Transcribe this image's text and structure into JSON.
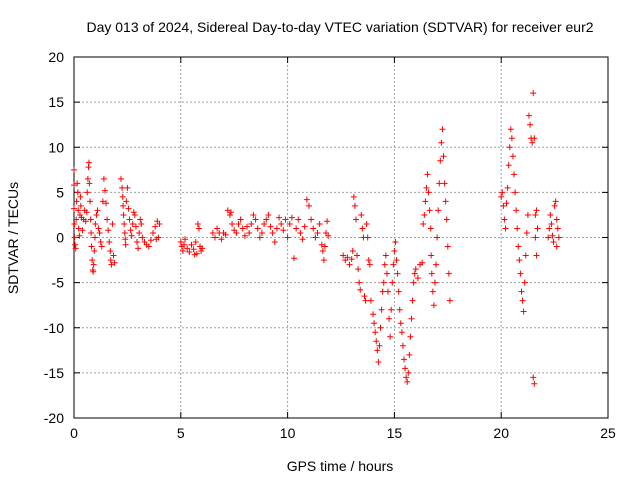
{
  "chart_data": {
    "type": "scatter",
    "title": "Day 013 of 2024, Sidereal Day-to-day VTEC variation (SDTVAR) for receiver eur2",
    "xlabel": "GPS time / hours",
    "ylabel": "SDTVAR / TECUs",
    "xlim": [
      0,
      25
    ],
    "ylim": [
      -20,
      20
    ],
    "xticks": [
      0,
      5,
      10,
      15,
      20,
      25
    ],
    "yticks": [
      -20,
      -15,
      -10,
      -5,
      0,
      5,
      10,
      15,
      20
    ],
    "xtick_labels": [
      "0",
      "5",
      "10",
      "15",
      "20",
      "25"
    ],
    "ytick_labels": [
      "-20",
      "-15",
      "-10",
      "-5",
      "0",
      "5",
      "10",
      "15",
      "20"
    ],
    "grid": true,
    "marker": "+",
    "color": "#ff0000",
    "series": [
      {
        "name": "eur2",
        "points": [
          [
            0.0,
            7.5
          ],
          [
            0.0,
            5.8
          ],
          [
            0.0,
            3.2
          ],
          [
            0.02,
            1.5
          ],
          [
            0.03,
            0.0
          ],
          [
            0.05,
            -0.8
          ],
          [
            0.08,
            -1.2
          ],
          [
            0.1,
            2.0
          ],
          [
            0.12,
            4.0
          ],
          [
            0.15,
            6.0
          ],
          [
            0.18,
            5.0
          ],
          [
            0.2,
            3.0
          ],
          [
            0.22,
            1.0
          ],
          [
            0.25,
            0.2
          ],
          [
            0.28,
            2.5
          ],
          [
            0.3,
            4.5
          ],
          [
            0.32,
            3.5
          ],
          [
            0.35,
            2.2
          ],
          [
            0.4,
            0.8
          ],
          [
            0.45,
            2.0
          ],
          [
            0.5,
            3.0
          ],
          [
            0.55,
            1.8
          ],
          [
            0.6,
            2.8
          ],
          [
            0.62,
            5.0
          ],
          [
            0.65,
            6.5
          ],
          [
            0.68,
            7.8
          ],
          [
            0.7,
            8.3
          ],
          [
            0.72,
            6.0
          ],
          [
            0.75,
            4.0
          ],
          [
            0.78,
            2.0
          ],
          [
            0.8,
            0.5
          ],
          [
            0.82,
            -1.0
          ],
          [
            0.85,
            -2.5
          ],
          [
            0.88,
            -3.6
          ],
          [
            0.9,
            -3.8
          ],
          [
            0.92,
            -3.0
          ],
          [
            0.95,
            -1.5
          ],
          [
            0.98,
            0.0
          ],
          [
            1.0,
            1.5
          ],
          [
            1.05,
            2.5
          ],
          [
            1.1,
            3.0
          ],
          [
            1.15,
            1.0
          ],
          [
            1.2,
            0.5
          ],
          [
            1.25,
            -0.5
          ],
          [
            1.3,
            -1.0
          ],
          [
            1.35,
            4.0
          ],
          [
            1.4,
            6.5
          ],
          [
            1.45,
            5.2
          ],
          [
            1.5,
            3.8
          ],
          [
            1.55,
            2.0
          ],
          [
            1.6,
            0.8
          ],
          [
            1.65,
            -0.5
          ],
          [
            1.7,
            -1.5
          ],
          [
            1.72,
            -2.5
          ],
          [
            1.75,
            -3.0
          ],
          [
            1.8,
            1.5
          ],
          [
            1.85,
            -2.0
          ],
          [
            1.9,
            -2.8
          ],
          [
            2.2,
            6.5
          ],
          [
            2.25,
            5.5
          ],
          [
            2.28,
            4.5
          ],
          [
            2.3,
            3.5
          ],
          [
            2.32,
            2.5
          ],
          [
            2.35,
            1.5
          ],
          [
            2.38,
            0.5
          ],
          [
            2.4,
            -0.2
          ],
          [
            2.42,
            -0.8
          ],
          [
            2.45,
            4.0
          ],
          [
            2.5,
            5.5
          ],
          [
            2.55,
            3.2
          ],
          [
            2.6,
            2.0
          ],
          [
            2.65,
            0.8
          ],
          [
            2.7,
            0.2
          ],
          [
            2.75,
            1.5
          ],
          [
            2.8,
            2.8
          ],
          [
            2.85,
            2.5
          ],
          [
            2.9,
            1.2
          ],
          [
            2.95,
            -0.5
          ],
          [
            3.0,
            -1.2
          ],
          [
            3.05,
            0.5
          ],
          [
            3.1,
            2.0
          ],
          [
            3.15,
            1.5
          ],
          [
            3.2,
            0.0
          ],
          [
            3.3,
            -0.5
          ],
          [
            3.4,
            -0.8
          ],
          [
            3.5,
            -1.0
          ],
          [
            3.6,
            -0.3
          ],
          [
            3.7,
            0.5
          ],
          [
            3.8,
            1.2
          ],
          [
            3.9,
            1.8
          ],
          [
            4.0,
            1.5
          ],
          [
            3.85,
            -0.2
          ],
          [
            3.95,
            0.0
          ],
          [
            5.0,
            -0.5
          ],
          [
            5.05,
            -1.0
          ],
          [
            5.1,
            -1.5
          ],
          [
            5.15,
            -0.8
          ],
          [
            5.2,
            -0.2
          ],
          [
            5.3,
            -1.2
          ],
          [
            5.4,
            -1.6
          ],
          [
            5.5,
            -0.8
          ],
          [
            5.6,
            -1.3
          ],
          [
            5.7,
            -0.5
          ],
          [
            5.75,
            -1.8
          ],
          [
            5.8,
            1.5
          ],
          [
            5.85,
            1.0
          ],
          [
            5.9,
            -1.0
          ],
          [
            5.95,
            -1.5
          ],
          [
            6.0,
            -1.2
          ],
          [
            5.65,
            -1.9
          ],
          [
            6.5,
            0.5
          ],
          [
            6.6,
            0.0
          ],
          [
            6.7,
            1.0
          ],
          [
            6.8,
            0.5
          ],
          [
            6.9,
            -0.2
          ],
          [
            7.0,
            0.5
          ],
          [
            7.1,
            0.3
          ],
          [
            7.2,
            3.0
          ],
          [
            7.3,
            2.5
          ],
          [
            7.35,
            2.8
          ],
          [
            7.4,
            1.5
          ],
          [
            7.5,
            0.8
          ],
          [
            7.6,
            0.5
          ],
          [
            7.7,
            1.5
          ],
          [
            7.8,
            2.0
          ],
          [
            7.9,
            1.0
          ],
          [
            8.0,
            0.2
          ],
          [
            8.1,
            1.2
          ],
          [
            8.2,
            0.5
          ],
          [
            8.3,
            1.5
          ],
          [
            8.4,
            2.5
          ],
          [
            8.5,
            2.0
          ],
          [
            8.6,
            1.0
          ],
          [
            8.7,
            0.0
          ],
          [
            8.8,
            0.5
          ],
          [
            8.9,
            1.5
          ],
          [
            9.0,
            2.0
          ],
          [
            9.1,
            2.5
          ],
          [
            9.2,
            1.2
          ],
          [
            9.3,
            0.5
          ],
          [
            9.4,
            -0.5
          ],
          [
            9.5,
            1.0
          ],
          [
            9.6,
            2.2
          ],
          [
            9.7,
            1.5
          ],
          [
            9.8,
            0.8
          ],
          [
            9.9,
            2.0
          ],
          [
            10.0,
            0.0
          ],
          [
            10.1,
            1.5
          ],
          [
            10.2,
            2.2
          ],
          [
            10.3,
            -2.3
          ],
          [
            10.4,
            1.0
          ],
          [
            10.5,
            2.0
          ],
          [
            10.6,
            0.5
          ],
          [
            10.7,
            -0.2
          ],
          [
            10.8,
            1.2
          ],
          [
            10.9,
            4.2
          ],
          [
            11.0,
            3.5
          ],
          [
            11.1,
            2.0
          ],
          [
            11.2,
            1.0
          ],
          [
            11.3,
            0.0
          ],
          [
            11.4,
            0.5
          ],
          [
            11.5,
            1.5
          ],
          [
            11.6,
            -0.8
          ],
          [
            11.65,
            -1.5
          ],
          [
            11.7,
            -2.5
          ],
          [
            11.75,
            -1.0
          ],
          [
            11.8,
            0.5
          ],
          [
            11.85,
            1.8
          ],
          [
            11.9,
            0.2
          ],
          [
            12.6,
            -2.0
          ],
          [
            12.7,
            -2.5
          ],
          [
            12.8,
            -2.2
          ],
          [
            12.9,
            -3.0
          ],
          [
            13.0,
            -2.4
          ],
          [
            13.05,
            -1.5
          ],
          [
            13.1,
            4.5
          ],
          [
            13.15,
            3.5
          ],
          [
            13.2,
            2.0
          ],
          [
            13.25,
            -2.0
          ],
          [
            13.3,
            -3.5
          ],
          [
            13.35,
            -5.0
          ],
          [
            13.4,
            -5.8
          ],
          [
            13.45,
            2.5
          ],
          [
            13.5,
            1.0
          ],
          [
            13.55,
            0.0
          ],
          [
            13.6,
            -6.5
          ],
          [
            13.65,
            -7.0
          ],
          [
            13.7,
            1.5
          ],
          [
            13.75,
            0.0
          ],
          [
            13.8,
            -2.5
          ],
          [
            13.85,
            -3.0
          ],
          [
            13.9,
            -7.0
          ],
          [
            14.0,
            -8.5
          ],
          [
            14.05,
            -9.5
          ],
          [
            14.1,
            -10.5
          ],
          [
            14.15,
            -11.5
          ],
          [
            14.2,
            -12.5
          ],
          [
            14.25,
            -13.8
          ],
          [
            14.3,
            -12.0
          ],
          [
            14.35,
            -10.0
          ],
          [
            14.4,
            -8.0
          ],
          [
            14.45,
            -6.0
          ],
          [
            14.5,
            -5.0
          ],
          [
            14.55,
            -3.0
          ],
          [
            14.6,
            -2.0
          ],
          [
            14.65,
            -4.0
          ],
          [
            14.7,
            -6.0
          ],
          [
            14.75,
            -9.0
          ],
          [
            14.8,
            -11.0
          ],
          [
            14.85,
            -8.0
          ],
          [
            14.9,
            -5.0
          ],
          [
            14.95,
            -3.0
          ],
          [
            15.0,
            -1.5
          ],
          [
            15.05,
            -0.5
          ],
          [
            15.1,
            -2.5
          ],
          [
            15.15,
            -4.0
          ],
          [
            15.2,
            -6.0
          ],
          [
            15.25,
            -8.0
          ],
          [
            15.3,
            -9.5
          ],
          [
            15.35,
            -10.5
          ],
          [
            15.4,
            -12.0
          ],
          [
            15.45,
            -13.5
          ],
          [
            15.5,
            -14.5
          ],
          [
            15.55,
            -15.5
          ],
          [
            15.6,
            -16.0
          ],
          [
            15.65,
            -15.0
          ],
          [
            15.7,
            -13.0
          ],
          [
            15.75,
            -11.0
          ],
          [
            15.8,
            -9.0
          ],
          [
            15.85,
            -7.0
          ],
          [
            15.9,
            -5.0
          ],
          [
            15.95,
            -4.0
          ],
          [
            16.0,
            -3.5
          ],
          [
            16.1,
            -4.5
          ],
          [
            16.2,
            -3.0
          ],
          [
            16.3,
            -2.8
          ],
          [
            16.35,
            1.5
          ],
          [
            16.4,
            2.5
          ],
          [
            16.45,
            4.0
          ],
          [
            16.5,
            5.5
          ],
          [
            16.55,
            7.0
          ],
          [
            16.6,
            5.0
          ],
          [
            16.65,
            3.0
          ],
          [
            16.7,
            1.0
          ],
          [
            16.72,
            -2.0
          ],
          [
            16.75,
            -4.0
          ],
          [
            16.8,
            -6.0
          ],
          [
            16.85,
            -7.5
          ],
          [
            16.9,
            -5.0
          ],
          [
            16.95,
            -3.0
          ],
          [
            17.0,
            0.0
          ],
          [
            17.05,
            3.0
          ],
          [
            17.1,
            6.0
          ],
          [
            17.15,
            8.5
          ],
          [
            17.2,
            10.5
          ],
          [
            17.25,
            12.0
          ],
          [
            17.3,
            9.0
          ],
          [
            17.35,
            6.0
          ],
          [
            17.4,
            4.0
          ],
          [
            17.45,
            2.0
          ],
          [
            17.5,
            -1.0
          ],
          [
            17.55,
            -4.0
          ],
          [
            17.6,
            -7.0
          ],
          [
            20.0,
            4.5
          ],
          [
            20.05,
            5.0
          ],
          [
            20.1,
            3.5
          ],
          [
            20.15,
            2.0
          ],
          [
            20.2,
            1.0
          ],
          [
            20.25,
            3.8
          ],
          [
            20.3,
            5.5
          ],
          [
            20.35,
            8.0
          ],
          [
            20.4,
            10.0
          ],
          [
            20.45,
            12.0
          ],
          [
            20.5,
            11.0
          ],
          [
            20.55,
            9.0
          ],
          [
            20.6,
            7.0
          ],
          [
            20.65,
            5.0
          ],
          [
            20.7,
            3.0
          ],
          [
            20.75,
            1.0
          ],
          [
            20.8,
            -1.0
          ],
          [
            20.85,
            -2.5
          ],
          [
            20.9,
            -4.0
          ],
          [
            20.95,
            -6.0
          ],
          [
            21.0,
            -7.0
          ],
          [
            21.05,
            -8.2
          ],
          [
            21.1,
            -5.0
          ],
          [
            21.15,
            -2.0
          ],
          [
            21.2,
            0.5
          ],
          [
            21.25,
            2.5
          ],
          [
            21.3,
            13.5
          ],
          [
            21.35,
            12.5
          ],
          [
            21.4,
            11.0
          ],
          [
            21.45,
            10.5
          ],
          [
            21.5,
            16.0
          ],
          [
            21.55,
            11.0
          ],
          [
            21.6,
            0.0
          ],
          [
            21.65,
            -2.0
          ],
          [
            21.7,
            1.0
          ],
          [
            21.5,
            -15.5
          ],
          [
            21.55,
            -16.2
          ],
          [
            21.6,
            2.5
          ],
          [
            21.65,
            3.0
          ],
          [
            22.2,
            0.0
          ],
          [
            22.25,
            1.0
          ],
          [
            22.3,
            2.5
          ],
          [
            22.35,
            1.5
          ],
          [
            22.4,
            0.2
          ],
          [
            22.45,
            -0.5
          ],
          [
            22.5,
            3.5
          ],
          [
            22.55,
            4.0
          ],
          [
            22.6,
            2.0
          ],
          [
            22.65,
            1.0
          ],
          [
            22.7,
            0.0
          ],
          [
            22.6,
            -1.0
          ]
        ]
      }
    ]
  }
}
